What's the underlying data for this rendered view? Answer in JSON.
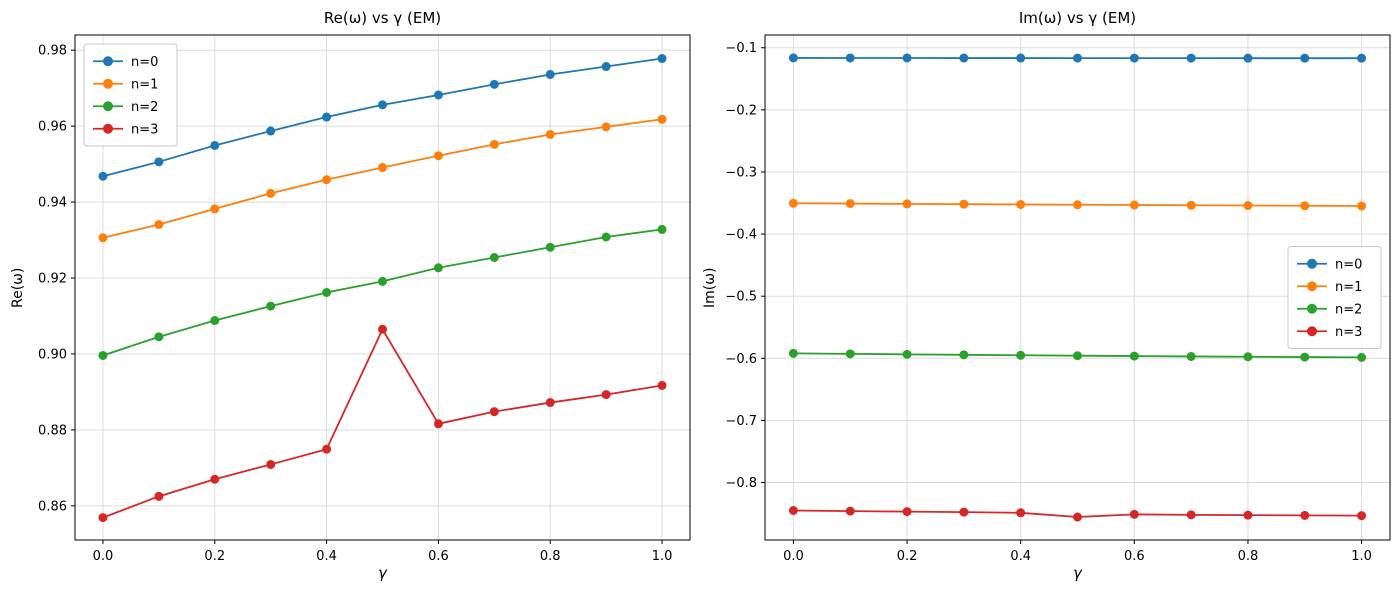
{
  "figure": {
    "background_color": "#ffffff",
    "grid_color": "#dcdcdc",
    "spine_color": "#000000",
    "legend_border_color": "#c9c9c9",
    "legend_background": "#ffffff"
  },
  "chart_data": [
    {
      "type": "line",
      "title": "Re(ω) vs γ (EM)",
      "xlabel": "γ",
      "ylabel": "Re(ω)",
      "grid": true,
      "x": [
        0.0,
        0.1,
        0.2,
        0.3,
        0.4,
        0.5,
        0.6,
        0.7,
        0.8,
        0.9,
        1.0
      ],
      "xlim": [
        -0.05,
        1.05
      ],
      "ylim": [
        0.851,
        0.984
      ],
      "xticks": {
        "values": [
          0.0,
          0.2,
          0.4,
          0.6,
          0.8,
          1.0
        ],
        "labels": [
          "0.0",
          "0.2",
          "0.4",
          "0.6",
          "0.8",
          "1.0"
        ]
      },
      "yticks": {
        "values": [
          0.86,
          0.88,
          0.9,
          0.92,
          0.94,
          0.96,
          0.98
        ],
        "labels": [
          "0.86",
          "0.88",
          "0.90",
          "0.92",
          "0.94",
          "0.96",
          "0.98"
        ]
      },
      "legend": {
        "loc": "upper left"
      },
      "series": [
        {
          "name": "n=0",
          "color": "#1f77b4",
          "marker": "o",
          "values": [
            0.9468,
            0.9506,
            0.9549,
            0.9587,
            0.9624,
            0.9656,
            0.9682,
            0.971,
            0.9736,
            0.9757,
            0.9778
          ]
        },
        {
          "name": "n=1",
          "color": "#ff7f0e",
          "marker": "o",
          "values": [
            0.9306,
            0.9341,
            0.9382,
            0.9423,
            0.9459,
            0.9491,
            0.9522,
            0.9552,
            0.9578,
            0.9598,
            0.9618
          ]
        },
        {
          "name": "n=2",
          "color": "#2ca02c",
          "marker": "o",
          "values": [
            0.8996,
            0.9045,
            0.9088,
            0.9126,
            0.9162,
            0.9191,
            0.9227,
            0.9254,
            0.9281,
            0.9308,
            0.9328
          ]
        },
        {
          "name": "n=3",
          "color": "#d62728",
          "marker": "o",
          "values": [
            0.8569,
            0.8625,
            0.867,
            0.8709,
            0.8749,
            0.9065,
            0.8816,
            0.8848,
            0.8872,
            0.8893,
            0.8917
          ]
        }
      ]
    },
    {
      "type": "line",
      "title": "Im(ω) vs γ (EM)",
      "xlabel": "γ",
      "ylabel": "Im(ω)",
      "grid": true,
      "x": [
        0.0,
        0.1,
        0.2,
        0.3,
        0.4,
        0.5,
        0.6,
        0.7,
        0.8,
        0.9,
        1.0
      ],
      "xlim": [
        -0.05,
        1.05
      ],
      "ylim": [
        -0.8925,
        -0.0795
      ],
      "xticks": {
        "values": [
          0.0,
          0.2,
          0.4,
          0.6,
          0.8,
          1.0
        ],
        "labels": [
          "0.0",
          "0.2",
          "0.4",
          "0.6",
          "0.8",
          "1.0"
        ]
      },
      "yticks": {
        "values": [
          -0.1,
          -0.2,
          -0.3,
          -0.4,
          -0.5,
          -0.6,
          -0.7,
          -0.8
        ],
        "labels": [
          "−0.1",
          "−0.2",
          "−0.3",
          "−0.4",
          "−0.5",
          "−0.6",
          "−0.7",
          "−0.8"
        ]
      },
      "legend": {
        "loc": "center right"
      },
      "series": [
        {
          "name": "n=0",
          "color": "#1f77b4",
          "marker": "o",
          "values": [
            -0.1164,
            -0.1165,
            -0.1165,
            -0.1166,
            -0.1166,
            -0.1167,
            -0.1167,
            -0.1167,
            -0.1168,
            -0.1168,
            -0.1168
          ]
        },
        {
          "name": "n=1",
          "color": "#ff7f0e",
          "marker": "o",
          "values": [
            -0.3504,
            -0.3509,
            -0.3514,
            -0.3519,
            -0.3523,
            -0.3528,
            -0.3532,
            -0.3536,
            -0.354,
            -0.3544,
            -0.3548
          ]
        },
        {
          "name": "n=2",
          "color": "#2ca02c",
          "marker": "o",
          "values": [
            -0.592,
            -0.5928,
            -0.5936,
            -0.5944,
            -0.5951,
            -0.5958,
            -0.5964,
            -0.597,
            -0.5975,
            -0.598,
            -0.5985
          ]
        },
        {
          "name": "n=3",
          "color": "#d62728",
          "marker": "o",
          "values": [
            -0.845,
            -0.846,
            -0.8468,
            -0.8476,
            -0.8487,
            -0.8555,
            -0.8512,
            -0.852,
            -0.8525,
            -0.8529,
            -0.8533
          ]
        }
      ]
    }
  ]
}
